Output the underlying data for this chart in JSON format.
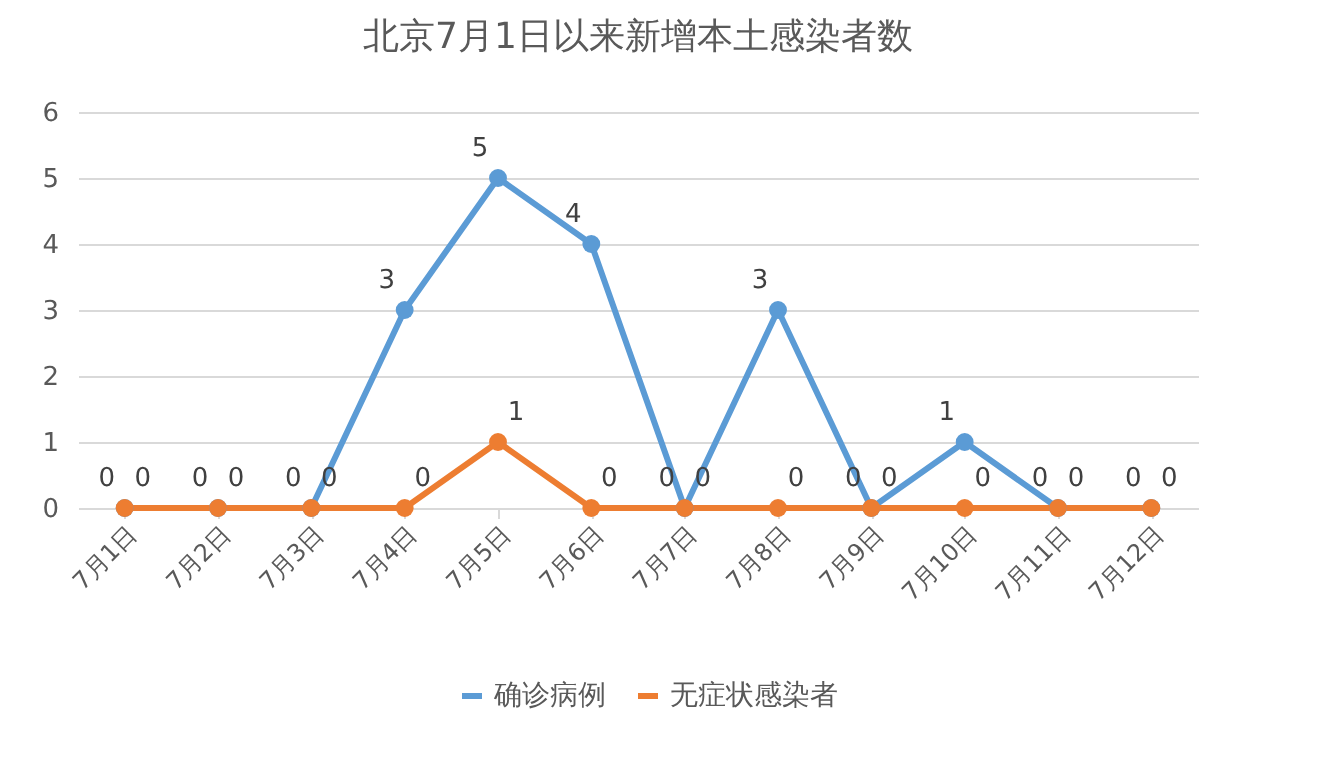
{
  "chart_data": {
    "type": "line",
    "title": "北京7月1日以来新增本土感染者数",
    "categories": [
      "7月1日",
      "7月2日",
      "7月3日",
      "7月4日",
      "7月5日",
      "7月6日",
      "7月7日",
      "7月8日",
      "7月9日",
      "7月10日",
      "7月11日",
      "7月12日"
    ],
    "series": [
      {
        "name": "确诊病例",
        "color": "#5b9bd5",
        "values": [
          0,
          0,
          0,
          3,
          5,
          4,
          0,
          3,
          0,
          1,
          0,
          0
        ]
      },
      {
        "name": "无症状感染者",
        "color": "#ed7d31",
        "values": [
          0,
          0,
          0,
          0,
          1,
          0,
          0,
          0,
          0,
          0,
          0,
          0
        ]
      }
    ],
    "ylim": [
      0,
      6
    ],
    "yticks": [
      0,
      1,
      2,
      3,
      4,
      5,
      6
    ],
    "grid": "y",
    "legend": "bottom",
    "marker": "circle",
    "line_style": "solid",
    "data_labels": true
  }
}
